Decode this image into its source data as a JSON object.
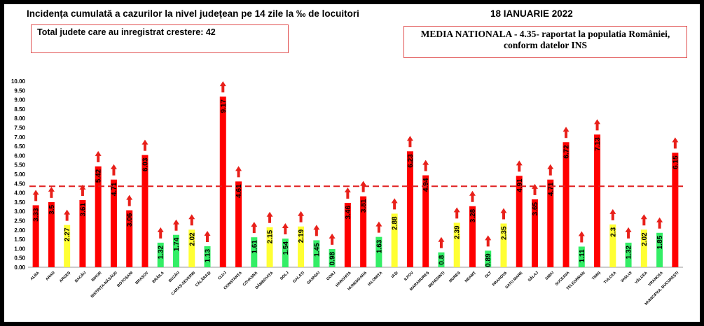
{
  "header": {
    "title": "Incidența cumulată a cazurilor la nivel județean pe 14 zile la ‰ de locuitori",
    "date": "18 IANUARIE 2022"
  },
  "info": {
    "total_text": "Total judete care au inregistrat crestere: 42",
    "media_line1": "MEDIA NATIONALA - 4.35-  raportat la populatia României,",
    "media_line2": "conform datelor INS"
  },
  "colors": {
    "red": "#ff0000",
    "yellow": "#ffff33",
    "green": "#33ee66",
    "arrow": "#e8201a",
    "reference_line": "#e02020"
  },
  "chart_data": {
    "type": "bar",
    "ylim": [
      0,
      10
    ],
    "yticks": [
      "0.00",
      "0.50",
      "1.00",
      "1.50",
      "2.00",
      "2.50",
      "3.00",
      "3.50",
      "4.00",
      "4.50",
      "5.00",
      "5.50",
      "6.00",
      "6.50",
      "7.00",
      "7.50",
      "8.00",
      "8.50",
      "9.00",
      "9.50",
      "10.00"
    ],
    "reference_value": 4.35,
    "categories": [
      "ALBA",
      "ARAD",
      "ARGEȘ",
      "BACĂU",
      "BIHOR",
      "BISTRIȚA-NĂSĂUD",
      "BOTOȘANI",
      "BRAȘOV",
      "BRĂILA",
      "BUZĂU",
      "CARAȘ-SEVERIN",
      "CĂLĂRAȘI",
      "CLUJ",
      "CONSTANȚA",
      "COVASNA",
      "DÂMBOVIȚA",
      "DOLJ",
      "GALAȚI",
      "GIURGIU",
      "GORJ",
      "HARGHITA",
      "HUNEDOARA",
      "IALOMIȚA",
      "IAȘI",
      "ILFOV",
      "MARAMUREȘ",
      "MEHEDINȚI",
      "MUREȘ",
      "NEAMȚ",
      "OLT",
      "PRAHOVA",
      "SATU MARE",
      "SĂLAJ",
      "SIBIU",
      "SUCEAVA",
      "TELEORMAN",
      "TIMIȘ",
      "TULCEA",
      "VASLUI",
      "VÂLCEA",
      "VRANCEA",
      "MUNICIPIUL BUCUREȘTI"
    ],
    "value_labels": [
      "3.33",
      "3.5",
      "2.27",
      "3.61",
      "5.42",
      "4.71",
      "3.06",
      "6.03",
      "1.32",
      "1.74",
      "2.02",
      "1.13",
      "9.17",
      "4.61",
      "1.61",
      "2.15",
      "1.54",
      "2.19",
      "1.45",
      "0.98",
      "3.46",
      "3.81",
      "1.63",
      "2.88",
      "6.23",
      "4.94",
      "0.8",
      "2.39",
      "3.28",
      "0.89",
      "2.35",
      "4.91",
      "3.65",
      "4.71",
      "6.72",
      "1.11",
      "7.13",
      "2.3",
      "1.32",
      "2.02",
      "1.85",
      "6.15"
    ],
    "values": [
      3.33,
      3.5,
      2.27,
      3.61,
      5.42,
      4.71,
      3.06,
      6.03,
      1.32,
      1.74,
      2.02,
      1.13,
      9.17,
      4.61,
      1.61,
      2.15,
      1.54,
      2.19,
      1.45,
      0.98,
      3.46,
      3.81,
      1.63,
      2.88,
      6.23,
      4.94,
      0.8,
      2.39,
      3.28,
      0.89,
      2.35,
      4.91,
      3.65,
      4.71,
      6.72,
      1.11,
      7.13,
      2.3,
      1.32,
      2.02,
      1.85,
      6.15
    ],
    "bar_colors": [
      "red",
      "red",
      "yellow",
      "red",
      "red",
      "red",
      "red",
      "red",
      "green",
      "green",
      "yellow",
      "green",
      "red",
      "red",
      "green",
      "yellow",
      "green",
      "yellow",
      "green",
      "green",
      "red",
      "red",
      "green",
      "yellow",
      "red",
      "red",
      "green",
      "yellow",
      "red",
      "green",
      "yellow",
      "red",
      "red",
      "red",
      "red",
      "green",
      "red",
      "yellow",
      "green",
      "yellow",
      "green",
      "red"
    ],
    "trend": "up-arrow-on-every-bar",
    "grid": false
  }
}
